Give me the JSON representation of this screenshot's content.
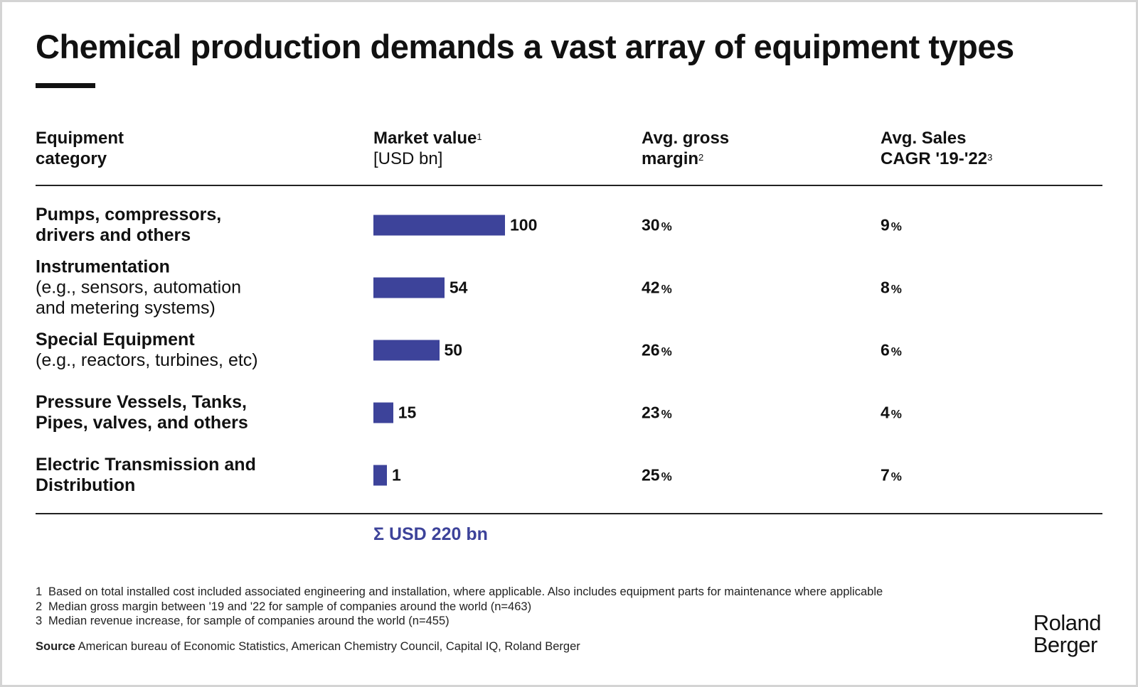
{
  "title": "Chemical production demands a vast array of equipment types",
  "headers": {
    "category": {
      "line1": "Equipment",
      "line2": "category"
    },
    "market_value": {
      "line1": "Market value",
      "sup": "1",
      "line2": "[USD bn]"
    },
    "gross_margin": {
      "line1": "Avg.  gross",
      "line2": "margin",
      "sup": "2"
    },
    "sales_cagr": {
      "line1": "Avg. Sales",
      "line2": "CAGR '19-'22",
      "sup": "3"
    }
  },
  "rows": [
    {
      "name": "Pumps, compressors,",
      "name2": "drivers and others",
      "desc": "",
      "desc2": "",
      "market_value": 100,
      "market_value_label": "100",
      "gross_margin": "30",
      "cagr": "9"
    },
    {
      "name": "Instrumentation",
      "name2": "",
      "desc": "(e.g., sensors, automation",
      "desc2": "and metering systems)",
      "market_value": 54,
      "market_value_label": "54",
      "gross_margin": "42",
      "cagr": "8"
    },
    {
      "name": "Special Equipment",
      "name2": "",
      "desc": "(e.g., reactors, turbines, etc)",
      "desc2": "",
      "market_value": 50,
      "market_value_label": "50",
      "gross_margin": "26",
      "cagr": "6"
    },
    {
      "name": "Pressure Vessels, Tanks,",
      "name2": "Pipes, valves, and others",
      "desc": "",
      "desc2": "",
      "market_value": 15,
      "market_value_label": "15",
      "gross_margin": "23",
      "cagr": "4"
    },
    {
      "name": "Electric Transmission and",
      "name2": "Distribution",
      "desc": "",
      "desc2": "",
      "market_value": 1,
      "market_value_label": "1",
      "gross_margin": "25",
      "cagr": "7"
    }
  ],
  "pct_symbol": "%",
  "total": "Σ USD 220 bn",
  "footnotes": [
    {
      "num": "1",
      "text": "Based on total installed cost included associated engineering and installation, where applicable. Also includes equipment parts for maintenance where applicable"
    },
    {
      "num": "2",
      "text": "Median gross margin between '19 and '22 for sample of companies around the world (n=463)"
    },
    {
      "num": "3",
      "text": "Median revenue increase, for sample of companies around the world (n=455)"
    }
  ],
  "source": {
    "label": "Source",
    "text": "American bureau of Economic Statistics, American Chemistry Council, Capital IQ, Roland Berger"
  },
  "logo": {
    "line1": "Roland",
    "line2": "Berger"
  },
  "colors": {
    "bar": "#3d439a",
    "text": "#111111"
  },
  "chart_data": {
    "type": "bar",
    "orientation": "horizontal",
    "title": "Chemical production demands a vast array of equipment types",
    "categories": [
      "Pumps, compressors, drivers and others",
      "Instrumentation (e.g., sensors, automation and metering systems)",
      "Special Equipment (e.g., reactors, turbines, etc)",
      "Pressure Vessels, Tanks, Pipes, valves, and others",
      "Electric Transmission and Distribution"
    ],
    "values": [
      100,
      54,
      50,
      15,
      1
    ],
    "unit": "USD bn",
    "gross_margin_pct": [
      30,
      42,
      26,
      23,
      25
    ],
    "sales_cagr_pct": [
      9,
      8,
      6,
      4,
      7
    ],
    "total": 220,
    "xlim": [
      0,
      100
    ],
    "grid": false,
    "legend": "none"
  }
}
